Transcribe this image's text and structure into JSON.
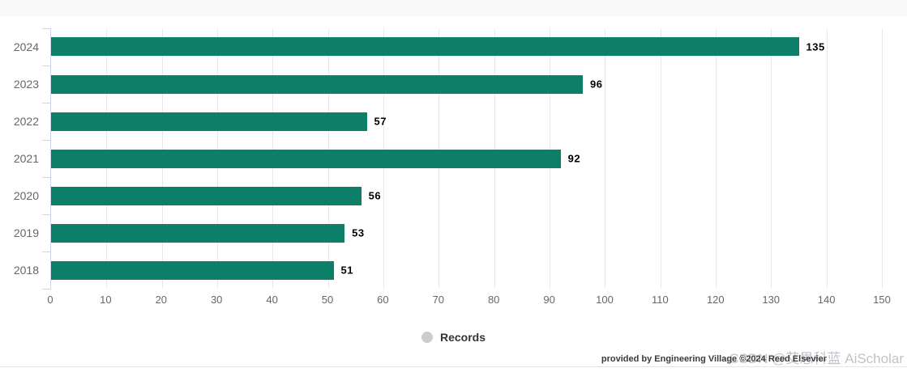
{
  "chart_data": {
    "type": "bar",
    "orientation": "horizontal",
    "title": "",
    "categories": [
      "2024",
      "2023",
      "2022",
      "2021",
      "2020",
      "2019",
      "2018"
    ],
    "series": [
      {
        "name": "Records",
        "values": [
          135,
          96,
          57,
          92,
          56,
          53,
          51
        ]
      }
    ],
    "xlabel": "",
    "ylabel": "",
    "xlim": [
      0,
      150
    ],
    "x_ticks": [
      0,
      10,
      20,
      30,
      40,
      50,
      60,
      70,
      80,
      90,
      100,
      110,
      120,
      130,
      140,
      150
    ],
    "grid": true,
    "data_labels_shown": true,
    "legend_position": "bottom-center",
    "bar_color": "#0d7f68",
    "data_label_color": "#000000",
    "axis_line_color": "#ccd6eb",
    "gridline_color": "#e7e7e7",
    "tick_label_color": "#666666"
  },
  "legend": {
    "label": "Records",
    "marker_color": "#cccccc"
  },
  "footer": {
    "credits": "provided by Engineering Village ©2024 Reed Elsevier",
    "watermark": "CSDN @艾思科蓝 AiScholar"
  }
}
